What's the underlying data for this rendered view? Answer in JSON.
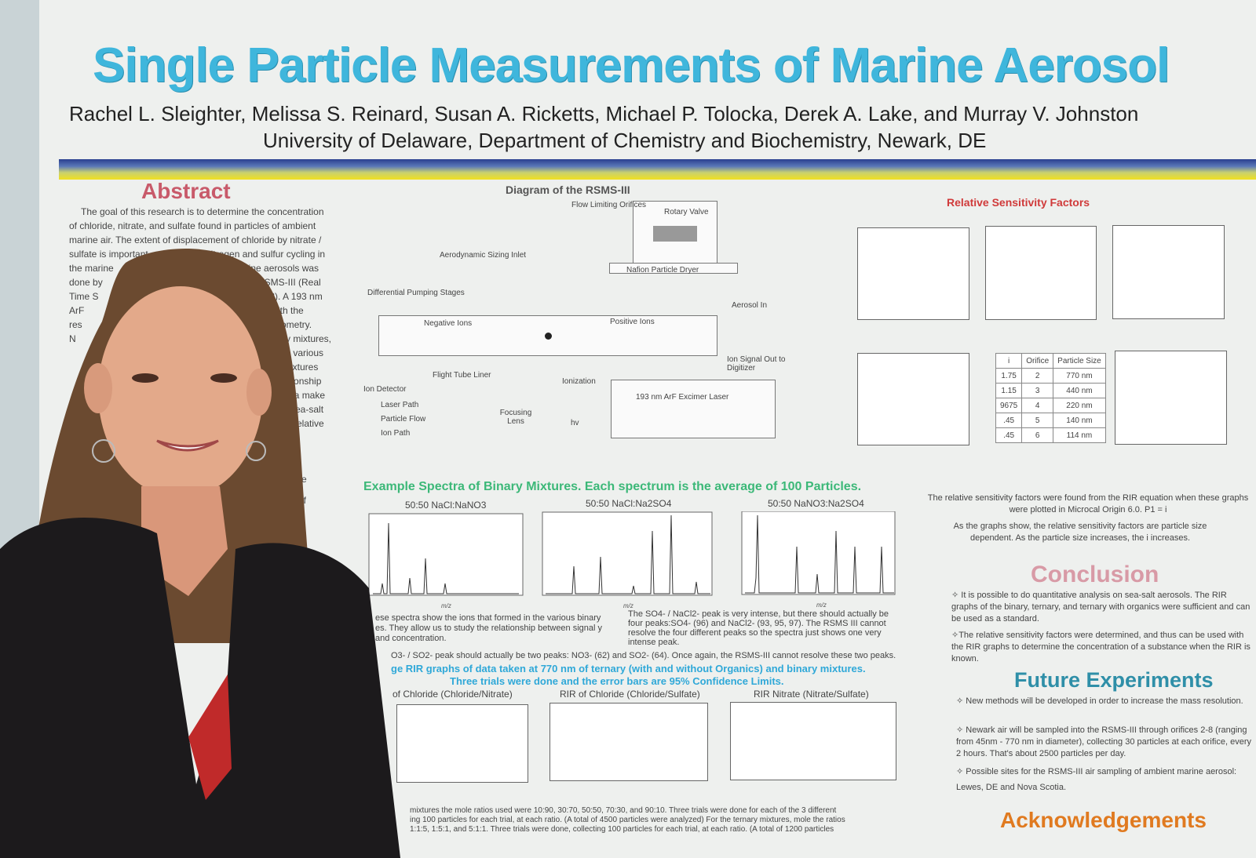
{
  "poster": {
    "title": "Single Particle Measurements of Marine Aerosol",
    "authors": "Rachel L. Sleighter, Melissa S. Reinard, Susan A. Ricketts, Michael P. Tolocka, Derek A. Lake, and Murray V. Johnston",
    "affiliation": "University of Delaware, Department of Chemistry and Biochemistry, Newark, DE",
    "colors": {
      "title": "#3fb6dc",
      "abstract": "#c85a6a",
      "rsf": "#d03a3a",
      "spectra_heading": "#3cb878",
      "future": "#2f8fa8",
      "acknowledgements": "#e07a20"
    }
  },
  "abstract": {
    "title": "Abstract",
    "lines": [
      "The goal of this research is to determine the concentration",
      "of chloride, nitrate, and sulfate found in particles of ambient",
      "marine air.  The extent of displacement of chloride by nitrate /"
    ],
    "fragments": [
      "sulfate is important",
      "nitrogen and sulfur cycling in",
      "the marine",
      "marine aerosols was",
      "done by",
      "e RSMS-III (Real",
      "Time S",
      "sion 3).  A 193 nm",
      "ArF",
      "es, with the",
      "res",
      "ectrometry.",
      "N",
      "inary mixtures,",
      "s, in various",
      "e mixtures",
      "elationship",
      "data make",
      "n sea-salt",
      "d relative",
      "tive",
      "of"
    ]
  },
  "diagram": {
    "title": "Diagram of the RSMS-III",
    "labels": [
      "Flow Limiting Orifices",
      "Rotary Valve",
      "Aerodynamic Sizing Inlet",
      "Nafion Particle Dryer",
      "Differential Pumping Stages",
      "Aerosol In",
      "Negative Ions",
      "Positive Ions",
      "Ion Signal Out to Digitizer",
      "Flight Tube Liner",
      "Ionization",
      "Ion Detector",
      "Laser Path",
      "Particle Flow",
      "Ion Path",
      "Focusing Lens",
      "hv",
      "193 nm ArF Excimer Laser"
    ]
  },
  "rsf": {
    "title": "Relative Sensitivity Factors",
    "table": {
      "headers": [
        "i",
        "Orifice",
        "Particle Size"
      ],
      "rows": [
        [
          "1.75",
          "2",
          "770 nm"
        ],
        [
          "1.15",
          "3",
          "440 nm"
        ],
        [
          "9675",
          "4",
          "220 nm"
        ],
        [
          ".45",
          "5",
          "140 nm"
        ],
        [
          ".45",
          "6",
          "114 nm"
        ]
      ]
    },
    "text1": "The relative sensitivity factors were found from the RIR equation when these graphs were plotted in Microcal Origin 6.0.  P1 = i",
    "text2": "As the graphs show, the relative sensitivity factors are particle size dependent.  As the particle size increases, the i increases."
  },
  "spectra": {
    "heading": "Example Spectra of Binary Mixtures.  Each spectrum is the average of 100 Particles.",
    "titles": [
      "50:50 NaCl:NaNO3",
      "50:50 NaCl:Na2SO4",
      "50:50 NaNO3:Na2SO4"
    ],
    "xlabel": "m/z",
    "note1": "ese spectra show the ions that formed in the various binary es.  They allow us to study the relationship between signal y and concentration.",
    "note2": "The SO4- / NaCl2- peak is very intense, but there should actually be four peaks:SO4- (96) and NaCl2- (93, 95, 97).  The RSMS III cannot resolve the four different peaks so the spectra just shows one very intense peak.",
    "note3": "O3- / SO2- peak should actually be two peaks: NO3- (62) and SO2- (64).  Once again, the RSMS-III cannot resolve these two peaks."
  },
  "rir": {
    "heading1": "ge RIR graphs of data taken at 770 nm of ternary (with and without Organics) and binary mixtures.",
    "heading2": "Three trials were done and the error bars are 95% Confidence Limits.",
    "titles": [
      "of Chloride (Chloride/Nitrate)",
      "RIR of Chloride (Chloride/Sulfate)",
      "RIR Nitrate (Nitrate/Sulfate)"
    ],
    "footer": [
      "mixtures the mole ratios used were 10:90, 30:70, 50:50, 70:30, and 90:10.  Three trials were done for each of the 3 different",
      "ing 100 particles for each trial, at each ratio.  (A total of 4500 particles were analyzed)  For the ternary mixtures, mole the ratios",
      "1:1:5, 1:5:1, and 5:1:1.  Three trials were done, collecting 100 particles for each trial, at each ratio.  (A total of 1200 particles"
    ]
  },
  "conclusion": {
    "title": "Conclusion",
    "items": [
      "✧ It is possible to do quantitative analysis on sea-salt aerosols.  The RIR graphs of the binary, ternary, and ternary with organics were sufficient and can be used as a standard.",
      "✧The relative sensitivity factors were determined, and thus can be used with the RIR graphs to determine the concentration of a substance when the RIR is known."
    ]
  },
  "future": {
    "title": "Future Experiments",
    "items": [
      "✧ New methods will be developed in order to increase the mass resolution.",
      "✧ Newark air will be sampled into the RSMS-III through orifices 2-8 (ranging from 45nm - 770 nm in diameter), collecting 30 particles at each orifice, every 2 hours.  That's about 2500 particles per day.",
      "✧ Possible sites for the RSMS-III air sampling of ambient marine aerosol: Lewes, DE and Nova Scotia."
    ]
  },
  "acknowledgements": {
    "title": "Acknowledgements"
  }
}
